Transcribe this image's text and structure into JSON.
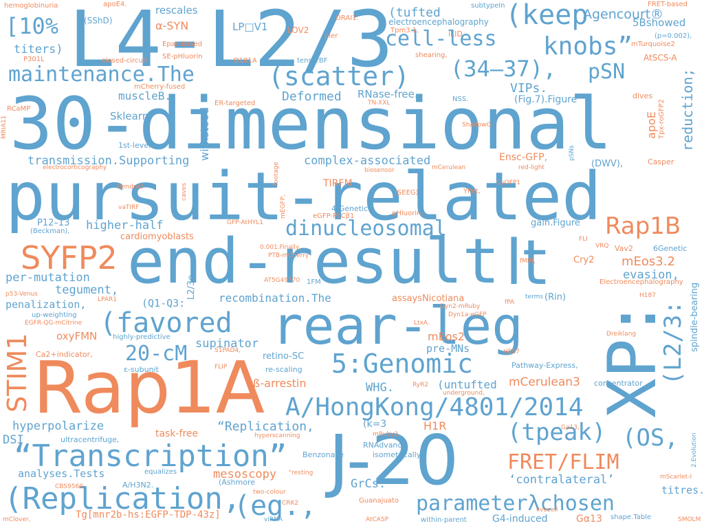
{
  "colors": {
    "blue": "#5fa3cf",
    "orange": "#ef8a5c",
    "background": "#ffffff"
  },
  "words": {
    "w001": "L4-L2/3",
    "w002": "30-dimensional",
    "w003": "pursuit-related",
    "w004": "end-result",
    "w005": "rear-leg",
    "w006": "Rap1A",
    "w007": "XP:",
    "w008": "J-20",
    "w009": "A/HongKong/4801/2014",
    "w010": "(Replication,",
    "w011": "“Transcription”",
    "w012": "5:Genomic",
    "w013": "(favored",
    "w014": "lt",
    "w015": "maintenance.The",
    "w016": "(scatter)",
    "w017": "(keep",
    "w018": "cell-less",
    "w019": "knobs”",
    "w020": "(34–37),",
    "w021": "pSN",
    "w022": "[10%",
    "w023": "STIM1",
    "w024": "SYFP2",
    "w025": "Rap1B",
    "w026": "FRET/FLIM",
    "w027": "(tpeak)",
    "w028": "(OS,",
    "w029": "(eg.,",
    "w030": "parameterλchosen",
    "w031": "dinucleosomal",
    "w032": "20-cM",
    "w033": "(L2/3:",
    "w034": "hemoglobinuria",
    "w035": "apoE4.",
    "w036": "(SShD)",
    "w037": "titers)",
    "w038": "P301L",
    "w039": "rescales",
    "w040": "α-SYN",
    "w041": "LP□V1",
    "w042": "LOV2",
    "w043": "ORAI1.",
    "w044": "pier",
    "w045": "(tufted",
    "w046": "electroencephalography",
    "w047": "subtypeIn",
    "w048": "Tpm3.1,",
    "w049": "iLID",
    "w050": "shearing,",
    "w051": "Agencourt®",
    "w052": "5Bshowed",
    "w053": "FRET-based",
    "w054": "(p=0.002),",
    "w055": "mTurquoise2",
    "w056": "closed-circuit",
    "w057": "D181A",
    "w058": "SE-pHluorin",
    "w059": "Epac-based",
    "w060": "tensorBF",
    "w061": "mCherry-fused",
    "w062": "AtSCS-A",
    "w063": "reduction;",
    "w064": "RCaMP",
    "w065": "muscleB.",
    "w066": "ER-targeted",
    "w067": "Deformed",
    "w068": "RNase-free.",
    "w069": "TN-XXL",
    "w070": "VIPs.",
    "w071": "NSS.",
    "w072": "(Fig.7).Figure",
    "w073": "dives",
    "w074": "Tpx-roGFP2",
    "w075": "MRIA11",
    "w076": "Sklearn",
    "w077": "withstood",
    "w078": "ShadowG",
    "w079": "apoE",
    "w080": "1st-level",
    "w081": "pSNs",
    "w082": "transmission.Supporting",
    "w083": "complex-associated",
    "w084": "Ensc-GFP,",
    "w085": "(DWV),",
    "w086": "Casper",
    "w087": "electrocorticography",
    "w088": "biosensor",
    "w089": "mCerulean",
    "w090": "red-light",
    "w091": "Dendra2",
    "w092": "caves",
    "w093": "footage",
    "w094": "TIRFM",
    "w095": "YPet,",
    "w096": "CyOFP1",
    "w097": "(SEEG)",
    "w098": "vaTIRF",
    "w099": "mEGFP,",
    "w100": "4:Genetic",
    "w101": "P12–13",
    "w102": "GFP-AtHYL1",
    "w103": "eGFP-PLCβ1",
    "w104": "pHluorin,",
    "w105": "(Beckman),",
    "w106": "higher-half",
    "w107": "gain.Figure",
    "w108": "cardiomyoblasts",
    "w109": "FLI",
    "w110": "VRQ",
    "w111": "0.001.Finally,",
    "w112": "Vav2",
    "w113": "6Genetic",
    "w114": "PTB-mCherry",
    "w115": "fMRI,",
    "w116": "Cry2",
    "w117": "mEos3.2",
    "w118": "per-mutation",
    "w119": "AT5G49770",
    "w120": "1FM",
    "w121": "evasion,",
    "w122": "Electroencephalography",
    "w123": "spindle-bearing",
    "w124": "tegument,",
    "w125": "L2/3e",
    "w126": "recombination.The",
    "w127": "p53-Venus",
    "w128": "penalization,",
    "w129": "LPAR1",
    "w130": "assaysNicotiana",
    "w131": "terms",
    "w132": "(Rin)",
    "w133": "H187",
    "w134": "(Q1-Q3:",
    "w135": "up-weighting",
    "w136": "EGFR-QG-mCitrine",
    "w137": "Dyn2-mRuby",
    "w138": "Dyn1a-eGFP",
    "w139": "fPA",
    "w140": "oxyFMN",
    "w141": "highly-predictive",
    "w142": "LtxA.",
    "w143": "Dreiklang",
    "w144": "Ca2+indicator,",
    "w145": "S1PAD4,",
    "w146": "supinator",
    "w147": "mEos2",
    "w148": "pre-MNs",
    "w149": "HES7",
    "w150": "ε-subunit",
    "w151": "FLIP",
    "w152": "retino-SC",
    "w153": "Pathway-Express,",
    "w154": "ß-arrestin",
    "w155": "re-scaling",
    "w156": "WHG.",
    "w157": "RyR2",
    "w158": "(untufted",
    "w159": "mCerulean3",
    "w160": "concentrator",
    "w161": "underground,",
    "w162": "hyperpolarize",
    "w163": "task-free",
    "w164": "“Replication,",
    "w165": "H1R",
    "w166": "(k=3",
    "w167": "mRuby2,",
    "w168": "Ga13,",
    "w169": "ultracentrifuge,",
    "w170": "hyperscanning",
    "w171": "DSI",
    "w172": "RNAdvance",
    "w173": "isometrically,",
    "w174": "Benzonase",
    "w175": "analyses.Tests",
    "w176": "equalizes",
    "w177": "mesoscopy",
    "w178": "\"resting",
    "w179": "(Ashmore",
    "w180": "A/H3N2.",
    "w181": "CBS9560",
    "w182": "‘contralateral’",
    "w183": "GrCs.",
    "w184": "2.Evolution",
    "w185": "mScarlet-I",
    "w186": "titres.",
    "w187": "two-colour",
    "w188": "Guanajuato",
    "w189": "CRK2",
    "w190": "livecell",
    "w191": "shape.Table",
    "w192": "Tg[mnr2b-hs:EGFP-TDP-43z]",
    "w193": "G4-induced",
    "w194": "Gα13",
    "w195": "mClover,",
    "w196": "viRNA",
    "w197": "AtCASP",
    "w198": "within-parent",
    "w199": "SMOLM"
  }
}
